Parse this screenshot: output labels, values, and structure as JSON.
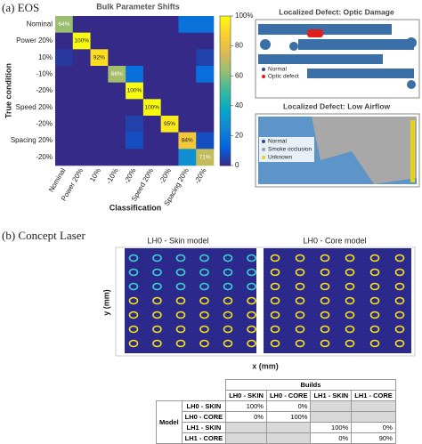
{
  "chart_data": {
    "type": "heatmap",
    "title": "Bulk Parameter Shifts",
    "xlabel": "Classification",
    "ylabel": "True condition",
    "x_categories": [
      "Nominal",
      "Power 20%",
      "10%",
      "-10%",
      "-20%",
      "Speed 20%",
      "-20%",
      "Spacing 20%",
      "-20%"
    ],
    "y_categories": [
      "Nominal",
      "Power 20%",
      "10%",
      "-10%",
      "-20%",
      "Speed 20%",
      "-20%",
      "Spacing 20%",
      "-20%"
    ],
    "values": [
      [
        64,
        0,
        0,
        0,
        0,
        0,
        0,
        18,
        18
      ],
      [
        0,
        100,
        0,
        0,
        0,
        0,
        0,
        0,
        0
      ],
      [
        3,
        0,
        92,
        0,
        0,
        0,
        0,
        0,
        5
      ],
      [
        0,
        0,
        0,
        66,
        17,
        0,
        0,
        0,
        17
      ],
      [
        0,
        0,
        0,
        0,
        100,
        0,
        0,
        0,
        0
      ],
      [
        0,
        0,
        0,
        0,
        0,
        100,
        0,
        0,
        0
      ],
      [
        0,
        0,
        0,
        0,
        5,
        0,
        95,
        0,
        0
      ],
      [
        0,
        0,
        0,
        0,
        8,
        0,
        0,
        84,
        8
      ],
      [
        0,
        0,
        0,
        0,
        0,
        0,
        0,
        29,
        71
      ]
    ],
    "value_labels": [
      [
        "64%",
        null,
        null,
        null,
        null,
        null,
        null,
        null,
        null
      ],
      [
        null,
        "100%",
        null,
        null,
        null,
        null,
        null,
        null,
        null
      ],
      [
        null,
        null,
        "92%",
        null,
        null,
        null,
        null,
        null,
        null
      ],
      [
        null,
        null,
        null,
        "66%",
        null,
        null,
        null,
        null,
        null
      ],
      [
        null,
        null,
        null,
        null,
        "100%",
        null,
        null,
        null,
        null
      ],
      [
        null,
        null,
        null,
        null,
        null,
        "100%",
        null,
        null,
        null
      ],
      [
        null,
        null,
        null,
        null,
        null,
        null,
        "95%",
        null,
        null
      ],
      [
        null,
        null,
        null,
        null,
        null,
        null,
        null,
        "84%",
        null
      ],
      [
        null,
        null,
        null,
        null,
        null,
        null,
        null,
        null,
        "71%"
      ]
    ],
    "zlim": [
      0,
      100
    ],
    "zticks": [
      0,
      20,
      40,
      60,
      80,
      {
        "value": 100,
        "label": "100%"
      }
    ],
    "colormap": [
      "#352a87",
      "#0363e1",
      "#1485d4",
      "#06a7c6",
      "#38b99e",
      "#92bf73",
      "#d9ba56",
      "#fcce2e",
      "#f9fb0e"
    ]
  },
  "panel_a": {
    "label": "(a) EOS"
  },
  "optic_damage": {
    "title": "Localized Defect: Optic Damage",
    "legend": [
      "Normal",
      "Optic defect"
    ]
  },
  "low_airflow": {
    "title": "Localized Defect: Low Airflow",
    "legend": [
      "Normal",
      "Smoke occlusion",
      "Unknown"
    ]
  },
  "panel_b": {
    "label": "(b) Concept Laser",
    "skin_title": "LH0 - Skin model",
    "core_title": "LH0 - Core model",
    "xlabel": "x (mm)",
    "ylabel": "y (mm)"
  },
  "table": {
    "group": "Builds",
    "row_group": "Model",
    "columns": [
      "LH0 - SKIN",
      "LH0 - CORE",
      "LH1 - SKIN",
      "LH1 - CORE"
    ],
    "rows": [
      {
        "label": "LH0 - SKIN",
        "cells": [
          "100%",
          "0%",
          null,
          null
        ]
      },
      {
        "label": "LH0 - CORE",
        "cells": [
          "0%",
          "100%",
          null,
          null
        ]
      },
      {
        "label": "LH1 - SKIN",
        "cells": [
          null,
          null,
          "100%",
          "0%"
        ]
      },
      {
        "label": "LH1 - CORE",
        "cells": [
          null,
          null,
          "0%",
          "90%"
        ]
      }
    ]
  }
}
